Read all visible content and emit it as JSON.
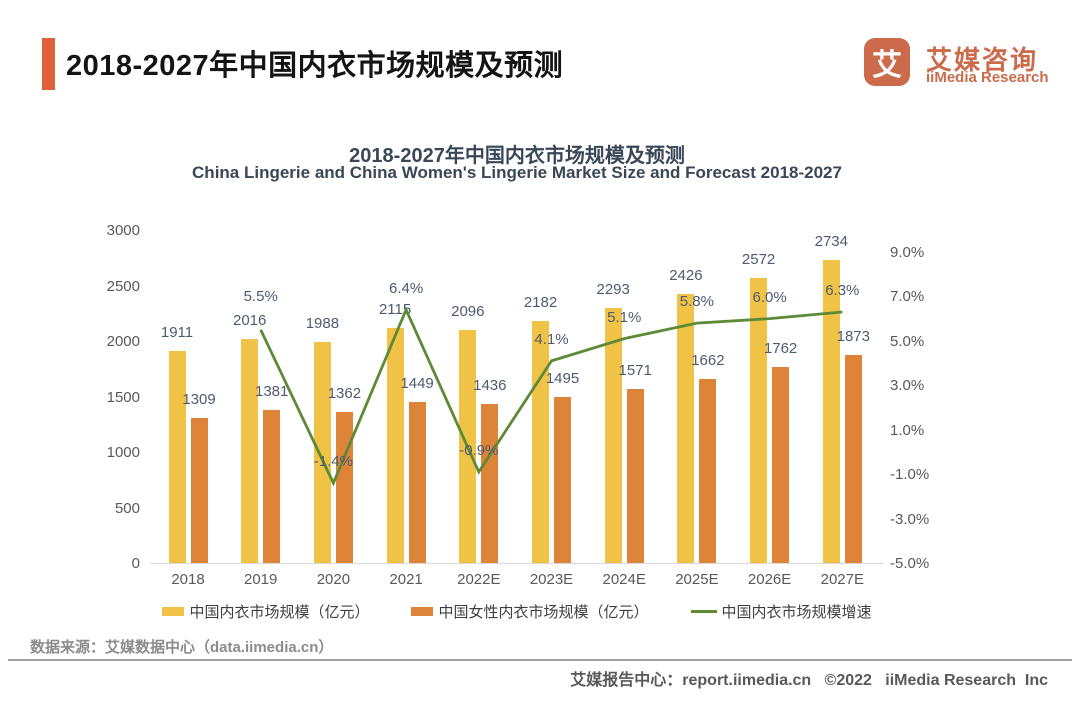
{
  "header": {
    "title": "2018-2027年中国内衣市场规模及预测",
    "logo": {
      "icon_char": "艾",
      "brand_cn": "艾媒咨询",
      "brand_en": "iiMedia Research",
      "brand_color": "#CB6B4B"
    },
    "accent_color": "#E0603A"
  },
  "chart": {
    "title": "2018-2027年中国内衣市场规模及预测",
    "subtitle": "China Lingerie and China Women's Lingerie Market Size and Forecast 2018-2027"
  },
  "chart_data": {
    "type": "bar",
    "categories": [
      "2018",
      "2019",
      "2020",
      "2021",
      "2022E",
      "2023E",
      "2024E",
      "2025E",
      "2026E",
      "2027E"
    ],
    "series": [
      {
        "name": "中国内衣市场规模（亿元）",
        "type": "bar",
        "color": "#F0C245",
        "values": [
          1911,
          2016,
          1988,
          2115,
          2096,
          2182,
          2293,
          2426,
          2572,
          2734
        ]
      },
      {
        "name": "中国女性内衣市场规模（亿元）",
        "type": "bar",
        "color": "#DD8439",
        "values": [
          1309,
          1381,
          1362,
          1449,
          1436,
          1495,
          1571,
          1662,
          1762,
          1873
        ]
      },
      {
        "name": "中国内衣市场规模增速",
        "type": "line",
        "color": "#5E8A38",
        "values": [
          null,
          5.5,
          -1.4,
          6.4,
          -0.9,
          4.1,
          5.1,
          5.8,
          6.0,
          6.3
        ],
        "labels": [
          null,
          "5.5%",
          "-1.4%",
          "6.4%",
          "-0.9%",
          "4.1%",
          "5.1%",
          "5.8%",
          "6.0%",
          "6.3%"
        ]
      }
    ],
    "left_axis": {
      "ticks": [
        3000,
        2500,
        2000,
        1500,
        1000,
        500,
        0
      ],
      "min": 0,
      "max": 3000
    },
    "right_axis": {
      "ticks": [
        "9.0%",
        "7.0%",
        "5.0%",
        "3.0%",
        "1.0%",
        "-1.0%",
        "-3.0%",
        "-5.0%"
      ],
      "min": -5,
      "max": 9
    },
    "grid": false,
    "legend_position": "bottom"
  },
  "source": {
    "text": "数据来源：艾媒数据中心（data.iimedia.cn）"
  },
  "footer": {
    "text": "艾媒报告中心：report.iimedia.cn   ©2022   iiMedia Research  Inc"
  }
}
